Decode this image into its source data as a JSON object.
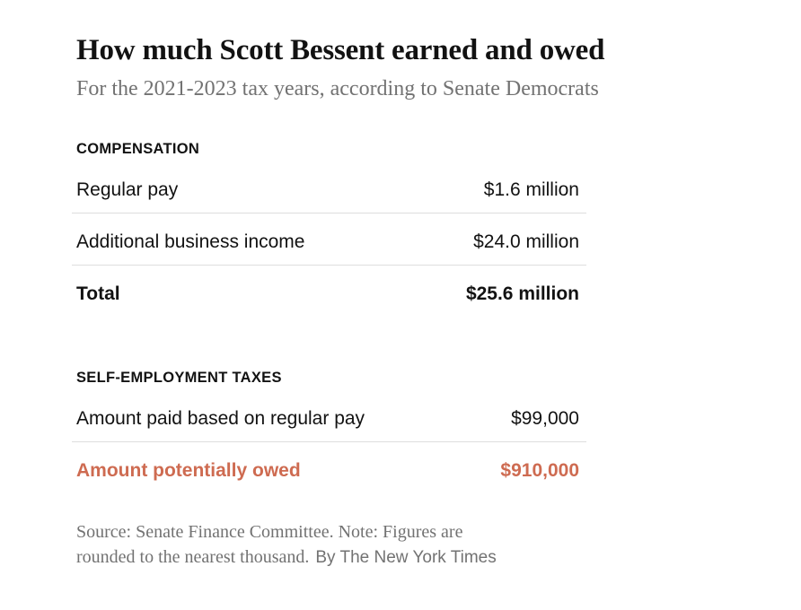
{
  "page": {
    "background": "#ffffff"
  },
  "colors": {
    "text": "#121212",
    "subtitle": "#727272",
    "divider": "#dedede",
    "highlight": "#ce6b51",
    "footnote": "#727272"
  },
  "chart_data": {
    "type": "table",
    "title": "How much Scott Bessent earned and owed",
    "subtitle": "For the 2021-2023 tax years, according to Senate Democrats",
    "legend_position": "none",
    "grid": "row-dividers",
    "sections": [
      {
        "header": "COMPENSATION",
        "rows": [
          {
            "label": "Regular pay",
            "value": "$1.6 million",
            "value_numeric": 1600000,
            "style": "normal"
          },
          {
            "label": "Additional business income",
            "value": "$24.0 million",
            "value_numeric": 24000000,
            "style": "normal"
          },
          {
            "label": "Total",
            "value": "$25.6 million",
            "value_numeric": 25600000,
            "style": "bold-total"
          }
        ]
      },
      {
        "header": "SELF-EMPLOYMENT TAXES",
        "rows": [
          {
            "label": "Amount paid based on regular pay",
            "value": "$99,000",
            "value_numeric": 99000,
            "style": "normal"
          },
          {
            "label": "Amount potentially owed",
            "value": "$910,000",
            "value_numeric": 910000,
            "style": "bold-highlight"
          }
        ]
      }
    ],
    "source_note_lines": [
      "Source: Senate Finance Committee. Note: Figures are",
      "rounded to the nearest thousand."
    ],
    "byline": "By The New York Times"
  }
}
